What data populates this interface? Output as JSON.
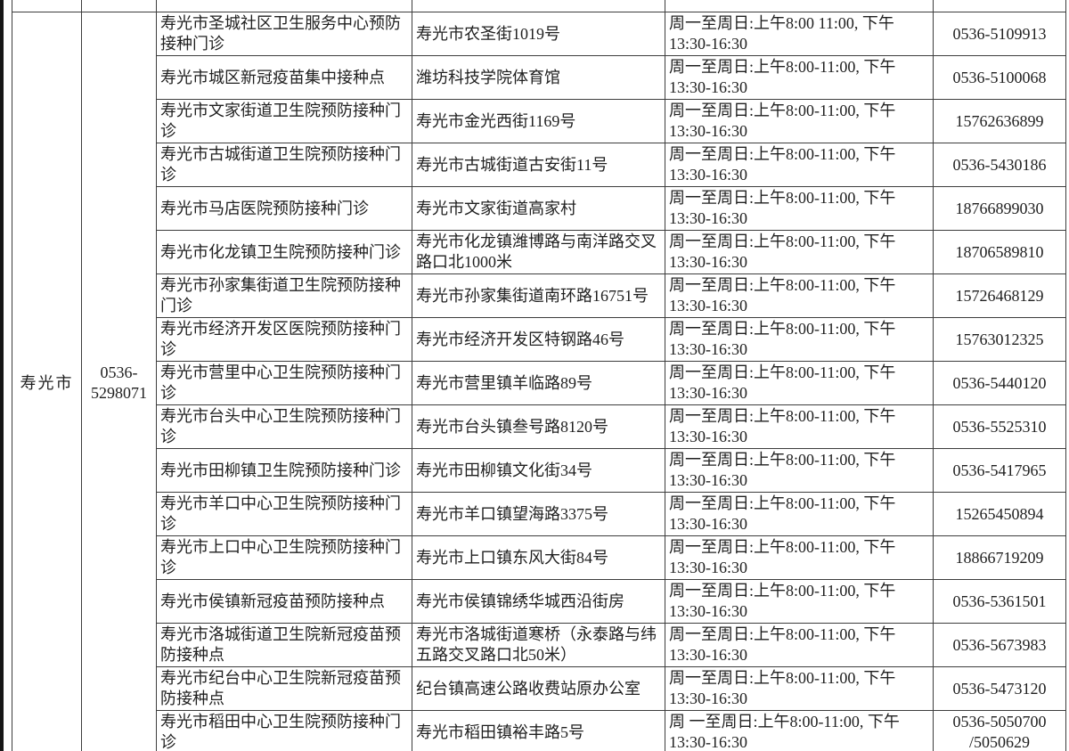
{
  "page": {
    "background": "#ffffff",
    "border_color": "#3d3d3d",
    "text_color": "#1f1f1f"
  },
  "region": {
    "city": "寿光市",
    "phone_line1": "0536-",
    "phone_line2": "5298071"
  },
  "table": {
    "rows": [
      {
        "name": "寿光市圣城社区卫生服务中心预防接种门诊",
        "address": "寿光市农圣街1019号",
        "hours": "周一至周日:上午8:00 11:00, 下午13:30-16:30",
        "phone": "0536-5109913"
      },
      {
        "name": "寿光市城区新冠疫苗集中接种点",
        "address": "潍坊科技学院体育馆",
        "hours": "周一至周日:上午8:00-11:00, 下午13:30-16:30",
        "phone": "0536-5100068"
      },
      {
        "name": "寿光市文家街道卫生院预防接种门诊",
        "address": "寿光市金光西街1169号",
        "hours": "周一至周日:上午8:00-11:00, 下午13:30-16:30",
        "phone": "15762636899"
      },
      {
        "name": "寿光市古城街道卫生院预防接种门诊",
        "address": "寿光市古城街道古安街11号",
        "hours": "周一至周日:上午8:00-11:00, 下午13:30-16:30",
        "phone": "0536-5430186"
      },
      {
        "name": "寿光市马店医院预防接种门诊",
        "address": "寿光市文家街道高家村",
        "hours": "周一至周日:上午8:00-11:00, 下午13:30-16:30",
        "phone": "18766899030"
      },
      {
        "name": "寿光市化龙镇卫生院预防接种门诊",
        "address": "寿光市化龙镇潍博路与南洋路交叉路口北1000米",
        "hours": "周一至周日:上午8:00-11:00, 下午13:30-16:30",
        "phone": "18706589810"
      },
      {
        "name": "寿光市孙家集街道卫生院预防接种门诊",
        "address": "寿光市孙家集街道南环路16751号",
        "hours": "周一至周日:上午8:00-11:00, 下午13:30-16:30",
        "phone": "15726468129"
      },
      {
        "name": "寿光市经济开发区医院预防接种门诊",
        "address": "寿光市经济开发区特钢路46号",
        "hours": "周一至周日:上午8:00-11:00, 下午13:30-16:30",
        "phone": "15763012325"
      },
      {
        "name": "寿光市营里中心卫生院预防接种门诊",
        "address": "寿光市营里镇羊临路89号",
        "hours": "周一至周日:上午8:00-11:00, 下午13:30-16:30",
        "phone": "0536-5440120"
      },
      {
        "name": "寿光市台头中心卫生院预防接种门诊",
        "address": "寿光市台头镇叁号路8120号",
        "hours": "周一至周日:上午8:00-11:00, 下午13:30-16:30",
        "phone": "0536-5525310"
      },
      {
        "name": "寿光市田柳镇卫生院预防接种门诊",
        "address": "寿光市田柳镇文化街34号",
        "hours": "周一至周日:上午8:00-11:00, 下午13:30-16:30",
        "phone": "0536-5417965"
      },
      {
        "name": "寿光市羊口中心卫生院预防接种门诊",
        "address": "寿光市羊口镇望海路3375号",
        "hours": "周一至周日:上午8:00-11:00, 下午13:30-16:30",
        "phone": "15265450894"
      },
      {
        "name": "寿光市上口中心卫生院预防接种门诊",
        "address": "寿光市上口镇东风大街84号",
        "hours": "周一至周日:上午8:00-11:00, 下午13:30-16:30",
        "phone": "18866719209"
      },
      {
        "name": "寿光市侯镇新冠疫苗预防接种点",
        "address": "寿光市侯镇锦绣华城西沿街房",
        "hours": "周一至周日:上午8:00-11:00, 下午13:30-16:30",
        "phone": "0536-5361501"
      },
      {
        "name": "寿光市洛城街道卫生院新冠疫苗预防接种点",
        "address": "寿光市洛城街道寒桥（永泰路与纬五路交叉路口北50米）",
        "hours": "周一至周日:上午8:00-11:00, 下午13:30-16:30",
        "phone": "0536-5673983"
      },
      {
        "name": "寿光市纪台中心卫生院新冠疫苗预防接种点",
        "address": "纪台镇高速公路收费站原办公室",
        "hours": "周一至周日:上午8:00-11:00, 下午13:30-16:30",
        "phone": "0536-5473120"
      },
      {
        "name": "寿光市稻田中心卫生院预防接种门诊",
        "address": "寿光市稻田镇裕丰路5号",
        "hours": "周 一至周日:上午8:00-11:00, 下午13:30-16:30",
        "phone": "0536-5050700",
        "phone2": "/5050629"
      }
    ]
  }
}
